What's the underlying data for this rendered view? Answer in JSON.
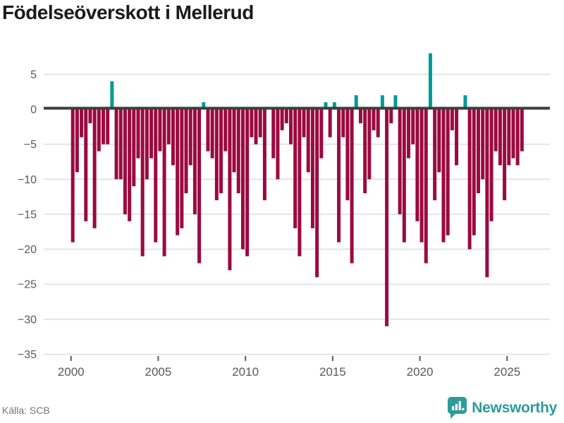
{
  "header": {
    "title": "Födelseöverskott i Mellerud"
  },
  "footer": {
    "source": "Källa: SCB",
    "brand": "Newsworthy"
  },
  "chart_data": {
    "type": "bar",
    "title": "Födelseöverskott i Mellerud",
    "start_period": "2000 Q1",
    "period_frequency": "quarterly",
    "values": [
      -19,
      -9,
      -4,
      -16,
      -2,
      -17,
      -6,
      -5,
      -5,
      4,
      -10,
      -10,
      -15,
      -16,
      -11,
      -7,
      -21,
      -10,
      -7,
      -19,
      -6,
      -21,
      -5,
      -8,
      -18,
      -17,
      -12,
      -8,
      -15,
      -22,
      1,
      -6,
      -7,
      -13,
      -12,
      -6,
      -23,
      -9,
      -12,
      -20,
      -21,
      -4,
      -5,
      -4,
      -13,
      0,
      -7,
      -10,
      -3,
      -2,
      -5,
      -17,
      -21,
      -4,
      -9,
      -17,
      -24,
      -7,
      1,
      -4,
      1,
      -19,
      -4,
      -13,
      -22,
      2,
      -2,
      -12,
      -10,
      -3,
      -4,
      2,
      -31,
      -2,
      2,
      -15,
      -19,
      -7,
      -5,
      -16,
      -19,
      -22,
      8,
      -13,
      -9,
      -19,
      -18,
      -3,
      -8,
      0,
      2,
      -20,
      -18,
      -12,
      -10,
      -24,
      -16,
      -6,
      -8,
      -13,
      -8,
      -7,
      -8,
      -6
    ],
    "yticks": [
      5,
      0,
      -5,
      -10,
      -15,
      -20,
      -25,
      -30,
      -35
    ],
    "ylim": [
      -35,
      8
    ],
    "xticks": [
      "2000",
      "2005",
      "2010",
      "2015",
      "2020",
      "2025"
    ],
    "grid": true,
    "legend": false,
    "colors": {
      "positive": "#009a9a",
      "negative": "#9a0a40"
    }
  }
}
